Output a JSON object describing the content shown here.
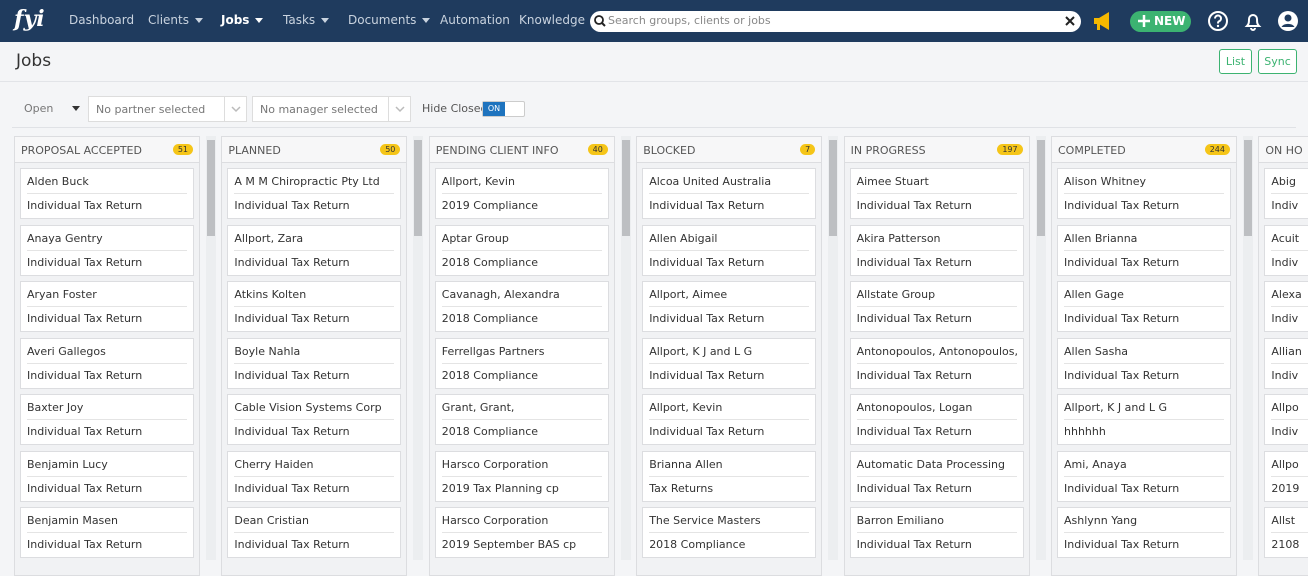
{
  "nav": {
    "logo": "fyi",
    "items": [
      "Dashboard",
      "Clients",
      "Jobs",
      "Tasks",
      "Documents",
      "Automation",
      "Knowledge"
    ],
    "search_placeholder": "Search groups, clients or jobs",
    "new_button": "NEW"
  },
  "header": {
    "title": "Jobs",
    "buttons": [
      "List",
      "Sync"
    ]
  },
  "filters": {
    "status": "Open",
    "partner": "No partner selected",
    "manager": "No manager selected",
    "hide_closed_label": "Hide Closed",
    "hide_closed_toggle": "ON"
  },
  "columns": [
    {
      "title": "PROPOSAL ACCEPTED",
      "count": 51,
      "cards": [
        {
          "name": "Alden Buck",
          "job": "Individual Tax Return"
        },
        {
          "name": "Anaya Gentry",
          "job": "Individual Tax Return"
        },
        {
          "name": "Aryan Foster",
          "job": "Individual Tax Return"
        },
        {
          "name": "Averi Gallegos",
          "job": "Individual Tax Return"
        },
        {
          "name": "Baxter Joy",
          "job": "Individual Tax Return"
        },
        {
          "name": "Benjamin Lucy",
          "job": "Individual Tax Return"
        },
        {
          "name": "Benjamin Masen",
          "job": "Individual Tax Return"
        }
      ]
    },
    {
      "title": "PLANNED",
      "count": 50,
      "cards": [
        {
          "name": "A M M Chiropractic Pty Ltd",
          "job": "Individual Tax Return"
        },
        {
          "name": "Allport, Zara",
          "job": "Individual Tax Return"
        },
        {
          "name": "Atkins Kolten",
          "job": "Individual Tax Return"
        },
        {
          "name": "Boyle Nahla",
          "job": "Individual Tax Return"
        },
        {
          "name": "Cable Vision Systems Corp",
          "job": "Individual Tax Return"
        },
        {
          "name": "Cherry Haiden",
          "job": "Individual Tax Return"
        },
        {
          "name": "Dean Cristian",
          "job": "Individual Tax Return"
        }
      ]
    },
    {
      "title": "PENDING CLIENT INFO",
      "count": 40,
      "cards": [
        {
          "name": "Allport, Kevin",
          "job": "2019 Compliance"
        },
        {
          "name": "Aptar Group",
          "job": "2018 Compliance"
        },
        {
          "name": "Cavanagh, Alexandra",
          "job": "2018 Compliance"
        },
        {
          "name": "Ferrellgas Partners",
          "job": "2018 Compliance"
        },
        {
          "name": "Grant, Grant,",
          "job": "2018 Compliance"
        },
        {
          "name": "Harsco Corporation",
          "job": "2019 Tax Planning cp"
        },
        {
          "name": "Harsco Corporation",
          "job": "2019 September BAS cp"
        }
      ]
    },
    {
      "title": "BLOCKED",
      "count": 7,
      "cards": [
        {
          "name": "Alcoa United Australia",
          "job": "Individual Tax Return"
        },
        {
          "name": "Allen Abigail",
          "job": "Individual Tax Return"
        },
        {
          "name": "Allport, Aimee",
          "job": "Individual Tax Return"
        },
        {
          "name": "Allport, K J and L G",
          "job": "Individual Tax Return"
        },
        {
          "name": "Allport, Kevin",
          "job": "Individual Tax Return"
        },
        {
          "name": "Brianna Allen",
          "job": "Tax Returns"
        },
        {
          "name": "The Service Masters",
          "job": "2018 Compliance"
        }
      ]
    },
    {
      "title": "IN PROGRESS",
      "count": 197,
      "cards": [
        {
          "name": "Aimee Stuart",
          "job": "Individual Tax Return"
        },
        {
          "name": "Akira Patterson",
          "job": "Individual Tax Return"
        },
        {
          "name": "Allstate Group",
          "job": "Individual Tax Return"
        },
        {
          "name": "Antonopoulos, Antonopoulos,",
          "job": "Individual Tax Return"
        },
        {
          "name": "Antonopoulos, Logan",
          "job": "Individual Tax Return"
        },
        {
          "name": "Automatic Data Processing",
          "job": "Individual Tax Return"
        },
        {
          "name": "Barron Emiliano",
          "job": "Individual Tax Return"
        }
      ]
    },
    {
      "title": "COMPLETED",
      "count": 244,
      "cards": [
        {
          "name": "Alison Whitney",
          "job": "Individual Tax Return"
        },
        {
          "name": "Allen Brianna",
          "job": "Individual Tax Return"
        },
        {
          "name": "Allen Gage",
          "job": "Individual Tax Return"
        },
        {
          "name": "Allen Sasha",
          "job": "Individual Tax Return"
        },
        {
          "name": "Allport, K J and L G",
          "job": "hhhhhh"
        },
        {
          "name": "Ami, Anaya",
          "job": "Individual Tax Return"
        },
        {
          "name": "Ashlynn Yang",
          "job": "Individual Tax Return"
        }
      ]
    },
    {
      "title": "ON HO",
      "cards": [
        {
          "name": "Abig",
          "job": "Indiv"
        },
        {
          "name": "Acuit",
          "job": "Indiv"
        },
        {
          "name": "Alexa",
          "job": "Indiv"
        },
        {
          "name": "Allian",
          "job": "Indiv"
        },
        {
          "name": "Allpo",
          "job": "Indiv"
        },
        {
          "name": "Allpo",
          "job": "2019"
        },
        {
          "name": "Allst",
          "job": "2108"
        }
      ]
    }
  ]
}
